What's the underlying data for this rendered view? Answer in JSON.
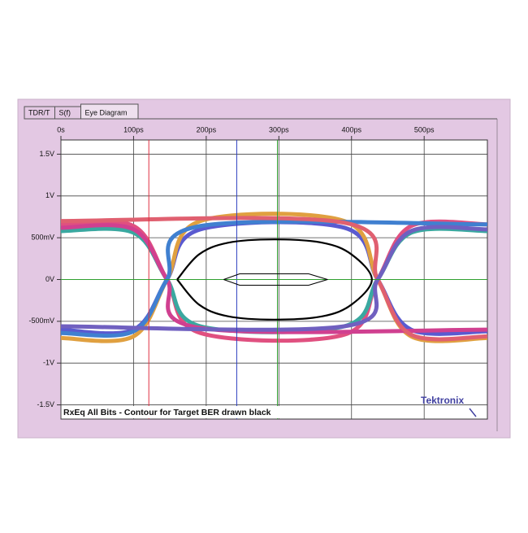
{
  "tabs": [
    "TDR/T",
    "S(f)",
    "Eye Diagram"
  ],
  "active_tab": 2,
  "chart_data": {
    "type": "line",
    "annotation": "RxEq All Bits - Contour for Target BER drawn black",
    "logo": "Tektronix",
    "xlim": [
      0,
      587
    ],
    "ylim": [
      -1.67,
      1.67
    ],
    "xticks": [
      {
        "value": 0,
        "label": "0s"
      },
      {
        "value": 100,
        "label": "100ps"
      },
      {
        "value": 200,
        "label": "200ps"
      },
      {
        "value": 300,
        "label": "300ps"
      },
      {
        "value": 400,
        "label": "400ps"
      },
      {
        "value": 500,
        "label": "500ps"
      }
    ],
    "yticks": [
      {
        "value": 1.5,
        "label": "1.5V"
      },
      {
        "value": 1,
        "label": "1V"
      },
      {
        "value": 0.5,
        "label": "500mV"
      },
      {
        "value": 0,
        "label": "0V"
      },
      {
        "value": -0.5,
        "label": "-500mV"
      },
      {
        "value": -1,
        "label": "-1V"
      },
      {
        "value": -1.5,
        "label": "-1.5V"
      }
    ],
    "grid": true,
    "series": [
      {
        "color": "#e05080",
        "x": [
          0,
          100,
          146,
          192,
          390,
          436,
          482,
          587
        ],
        "values": [
          0.66,
          0.64,
          0,
          -0.64,
          -0.66,
          0,
          0.64,
          0.66
        ]
      },
      {
        "color": "#5a5ad0",
        "x": [
          0,
          100,
          146,
          192,
          390,
          436,
          482,
          587
        ],
        "values": [
          -0.6,
          -0.6,
          0,
          0.6,
          0.62,
          0,
          -0.6,
          -0.62
        ]
      },
      {
        "color": "#3aa8a0",
        "x": [
          0,
          100,
          146,
          192,
          390,
          436,
          482,
          587
        ],
        "values": [
          0.58,
          0.56,
          0,
          -0.56,
          -0.56,
          0,
          0.56,
          0.58
        ]
      },
      {
        "color": "#e0a040",
        "x": [
          0,
          100,
          146,
          192,
          390,
          436,
          482,
          587
        ],
        "values": [
          -0.7,
          -0.68,
          0,
          0.7,
          0.7,
          0,
          -0.68,
          -0.7
        ]
      },
      {
        "color": "#d04090",
        "x": [
          0,
          100,
          146,
          192,
          587
        ],
        "values": [
          0.62,
          0.6,
          0,
          -0.58,
          -0.6
        ]
      },
      {
        "color": "#4080d0",
        "x": [
          0,
          100,
          146,
          192,
          587
        ],
        "values": [
          -0.64,
          -0.62,
          0,
          0.64,
          0.66
        ]
      },
      {
        "color": "#e06070",
        "x": [
          0,
          390,
          436,
          482,
          587
        ],
        "values": [
          0.7,
          0.68,
          0,
          -0.66,
          -0.68
        ]
      },
      {
        "color": "#7060c0",
        "x": [
          0,
          390,
          436,
          482,
          587
        ],
        "values": [
          -0.56,
          -0.56,
          0,
          0.58,
          0.6
        ]
      }
    ],
    "contour": {
      "color": "#000000",
      "x": [
        160,
        190,
        230,
        294,
        360,
        400,
        428,
        400,
        360,
        294,
        230,
        190,
        160
      ],
      "values": [
        0,
        0.3,
        0.44,
        0.48,
        0.44,
        0.3,
        0,
        -0.3,
        -0.44,
        -0.48,
        -0.44,
        -0.3,
        0
      ]
    },
    "mask": {
      "x": [
        224,
        246,
        341,
        367,
        341,
        246,
        224
      ],
      "values": [
        0,
        0.068,
        0.068,
        0,
        -0.068,
        -0.068,
        0
      ]
    },
    "cursors": [
      {
        "axis": "x",
        "value": 121,
        "color": "#e03040"
      },
      {
        "axis": "x",
        "value": 242,
        "color": "#3040c0"
      },
      {
        "axis": "x",
        "value": 298,
        "color": "#30a030"
      },
      {
        "axis": "y",
        "value": 0,
        "color": "#30a030"
      }
    ]
  }
}
